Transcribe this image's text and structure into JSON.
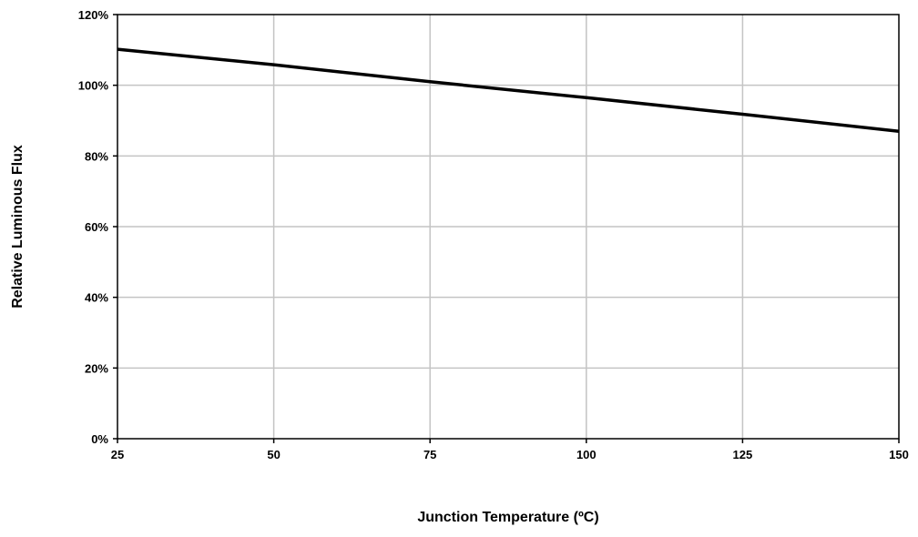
{
  "chart_data": {
    "type": "line",
    "xlabel": "Junction Temperature (ºC)",
    "ylabel": "Relative Luminous Flux",
    "xlim": [
      25,
      150
    ],
    "ylim": [
      0,
      120
    ],
    "x_ticks": [
      25,
      50,
      75,
      100,
      125,
      150
    ],
    "y_ticks": [
      0,
      20,
      40,
      60,
      80,
      100,
      120
    ],
    "x_tick_labels": [
      "25",
      "50",
      "75",
      "100",
      "125",
      "150"
    ],
    "y_tick_labels": [
      "0%",
      "20%",
      "40%",
      "60%",
      "80%",
      "100%",
      "120%"
    ],
    "grid": true,
    "series": [
      {
        "x": [
          25,
          50,
          75,
          100,
          125,
          150
        ],
        "y": [
          110.2,
          105.8,
          101.0,
          96.5,
          91.8,
          87.0
        ],
        "color": "#000000"
      }
    ]
  }
}
